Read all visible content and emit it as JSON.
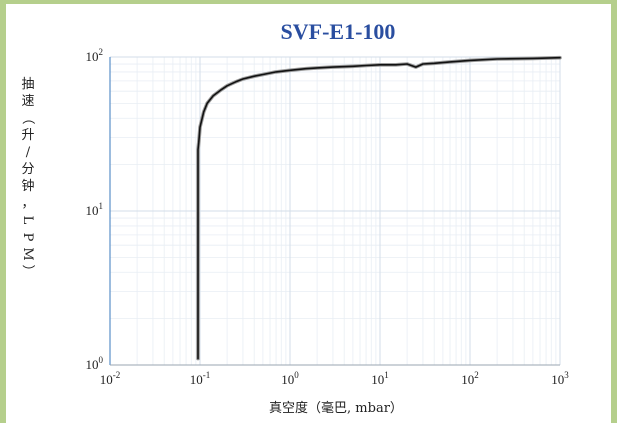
{
  "chart_data": {
    "type": "line",
    "title": "SVF-E1-100",
    "xlabel": "真空度（毫巴, mbar）",
    "ylabel": "抽速（升/分钟，LPM）",
    "xscale": "log",
    "yscale": "log",
    "xlim": [
      0.01,
      1000
    ],
    "ylim": [
      1,
      100
    ],
    "xticks": [
      {
        "base": "10",
        "exp": "-2"
      },
      {
        "base": "10",
        "exp": "-1"
      },
      {
        "base": "10",
        "exp": "0"
      },
      {
        "base": "10",
        "exp": "1"
      },
      {
        "base": "10",
        "exp": "2"
      },
      {
        "base": "10",
        "exp": "3"
      }
    ],
    "yticks": [
      {
        "base": "10",
        "exp": "0"
      },
      {
        "base": "10",
        "exp": "1"
      },
      {
        "base": "10",
        "exp": "2"
      }
    ],
    "grid": true,
    "series": [
      {
        "x": [
          0.095,
          0.095,
          0.097,
          0.1,
          0.11,
          0.12,
          0.14,
          0.17,
          0.2,
          0.25,
          0.3,
          0.4,
          0.5,
          0.7,
          1.0,
          1.5,
          2,
          3,
          5,
          7,
          10,
          15,
          20,
          25,
          30,
          40,
          60,
          100,
          200,
          500,
          1000
        ],
        "y": [
          1.1,
          25,
          28,
          35,
          44,
          50,
          56,
          61,
          65,
          69,
          72,
          75,
          77,
          80,
          82,
          84,
          85,
          86,
          87,
          88,
          89,
          89,
          90,
          86,
          90,
          91,
          93,
          95,
          97,
          98,
          99
        ]
      }
    ]
  }
}
